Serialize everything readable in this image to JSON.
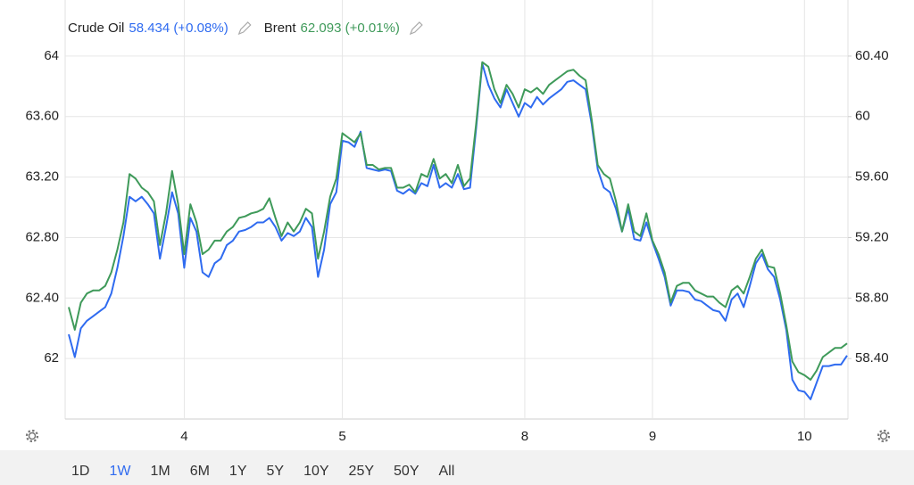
{
  "chart_data": {
    "type": "line",
    "categories": [
      null,
      null,
      null,
      null,
      null,
      null,
      null,
      null,
      null,
      null,
      null,
      null,
      null,
      null,
      null,
      null,
      null,
      null,
      null,
      "4",
      null,
      null,
      null,
      null,
      null,
      null,
      null,
      null,
      null,
      null,
      null,
      null,
      null,
      null,
      null,
      null,
      null,
      null,
      null,
      null,
      null,
      null,
      null,
      null,
      null,
      "5",
      null,
      null,
      null,
      null,
      null,
      null,
      null,
      null,
      null,
      null,
      null,
      null,
      null,
      null,
      null,
      null,
      null,
      null,
      null,
      null,
      null,
      null,
      null,
      null,
      null,
      null,
      null,
      null,
      null,
      "8",
      null,
      null,
      null,
      null,
      null,
      null,
      null,
      null,
      null,
      null,
      null,
      null,
      null,
      null,
      null,
      null,
      null,
      null,
      null,
      null,
      "9",
      null,
      null,
      null,
      null,
      null,
      null,
      null,
      null,
      null,
      null,
      null,
      null,
      null,
      null,
      null,
      null,
      null,
      null,
      null,
      null,
      null,
      null,
      null,
      null,
      "10",
      null,
      null,
      null,
      null,
      null,
      null,
      null
    ],
    "series": [
      {
        "name": "Crude Oil",
        "quote": "58.434 (+0.08%)",
        "color": "#2f6bf0",
        "axis": "y2",
        "values": [
          58.56,
          58.41,
          58.6,
          58.65,
          58.68,
          58.71,
          58.74,
          58.83,
          59.0,
          59.21,
          59.47,
          59.44,
          59.47,
          59.42,
          59.36,
          59.06,
          59.27,
          59.5,
          59.36,
          59.0,
          59.33,
          59.24,
          58.97,
          58.94,
          59.03,
          59.06,
          59.15,
          59.18,
          59.24,
          59.25,
          59.27,
          59.3,
          59.3,
          59.33,
          59.27,
          59.18,
          59.23,
          59.21,
          59.24,
          59.33,
          59.27,
          58.94,
          59.12,
          59.42,
          59.5,
          59.84,
          59.83,
          59.8,
          59.9,
          59.66,
          59.65,
          59.64,
          59.65,
          59.64,
          59.51,
          59.49,
          59.52,
          59.49,
          59.56,
          59.54,
          59.68,
          59.53,
          59.56,
          59.53,
          59.62,
          59.52,
          59.53,
          59.92,
          60.35,
          60.21,
          60.12,
          60.06,
          60.18,
          60.09,
          60.0,
          60.09,
          60.06,
          60.13,
          60.08,
          60.12,
          60.15,
          60.18,
          60.23,
          60.24,
          60.21,
          60.18,
          59.95,
          59.65,
          59.53,
          59.5,
          59.39,
          59.24,
          59.39,
          59.19,
          59.18,
          59.3,
          59.17,
          59.06,
          58.94,
          58.75,
          58.85,
          58.85,
          58.84,
          58.79,
          58.78,
          58.75,
          58.72,
          58.71,
          58.65,
          58.79,
          58.83,
          58.74,
          58.88,
          59.03,
          59.09,
          58.99,
          58.94,
          58.79,
          58.59,
          58.26,
          58.19,
          58.18,
          58.13,
          58.24,
          58.35,
          58.35,
          58.36,
          58.36,
          58.42
        ]
      },
      {
        "name": "Brent",
        "quote": "62.093 (+0.01%)",
        "color": "#3f9a5a",
        "axis": "y",
        "values": [
          62.34,
          62.19,
          62.37,
          62.43,
          62.45,
          62.45,
          62.48,
          62.57,
          62.72,
          62.9,
          63.22,
          63.19,
          63.13,
          63.1,
          63.04,
          62.75,
          62.96,
          63.24,
          63.02,
          62.69,
          63.02,
          62.9,
          62.69,
          62.72,
          62.78,
          62.78,
          62.84,
          62.87,
          62.93,
          62.94,
          62.96,
          62.97,
          62.99,
          63.06,
          62.93,
          62.81,
          62.9,
          62.84,
          62.9,
          62.99,
          62.96,
          62.66,
          62.84,
          63.07,
          63.19,
          63.49,
          63.46,
          63.43,
          63.49,
          63.28,
          63.28,
          63.25,
          63.26,
          63.26,
          63.13,
          63.13,
          63.15,
          63.1,
          63.22,
          63.2,
          63.32,
          63.19,
          63.22,
          63.16,
          63.28,
          63.14,
          63.19,
          63.55,
          63.96,
          63.93,
          63.78,
          63.69,
          63.81,
          63.75,
          63.66,
          63.78,
          63.76,
          63.79,
          63.75,
          63.81,
          63.84,
          63.87,
          63.9,
          63.91,
          63.87,
          63.84,
          63.58,
          63.28,
          63.22,
          63.19,
          63.04,
          62.84,
          63.02,
          62.84,
          62.81,
          62.96,
          62.78,
          62.69,
          62.57,
          62.37,
          62.48,
          62.5,
          62.5,
          62.45,
          62.43,
          62.41,
          62.41,
          62.37,
          62.34,
          62.45,
          62.48,
          62.43,
          62.54,
          62.66,
          62.72,
          62.61,
          62.6,
          62.43,
          62.22,
          61.98,
          61.91,
          61.89,
          61.86,
          61.92,
          62.01,
          62.04,
          62.07,
          62.07,
          62.1
        ]
      }
    ],
    "ylim": [
      61.6,
      64.2
    ],
    "yticks": [
      62,
      {
        "value": 62.4,
        "label": "62.40"
      },
      {
        "value": 62.8,
        "label": "62.80"
      },
      {
        "value": 63.2,
        "label": "63.20"
      },
      {
        "value": 63.6,
        "label": "63.60"
      },
      64
    ],
    "y2lim": [
      58.0,
      60.6
    ],
    "y2ticks": [
      {
        "value": 58.4,
        "label": "58.40"
      },
      {
        "value": 58.8,
        "label": "58.80"
      },
      {
        "value": 59.2,
        "label": "59.20"
      },
      {
        "value": 59.6,
        "label": "59.60"
      },
      60,
      {
        "value": 60.4,
        "label": "60.40"
      }
    ],
    "grid": true,
    "ranges": [
      "1D",
      "1W",
      "1M",
      "6M",
      "1Y",
      "5Y",
      "10Y",
      "25Y",
      "50Y",
      "All"
    ],
    "selected_range": 1,
    "selected_color": "#2f6bf0"
  }
}
